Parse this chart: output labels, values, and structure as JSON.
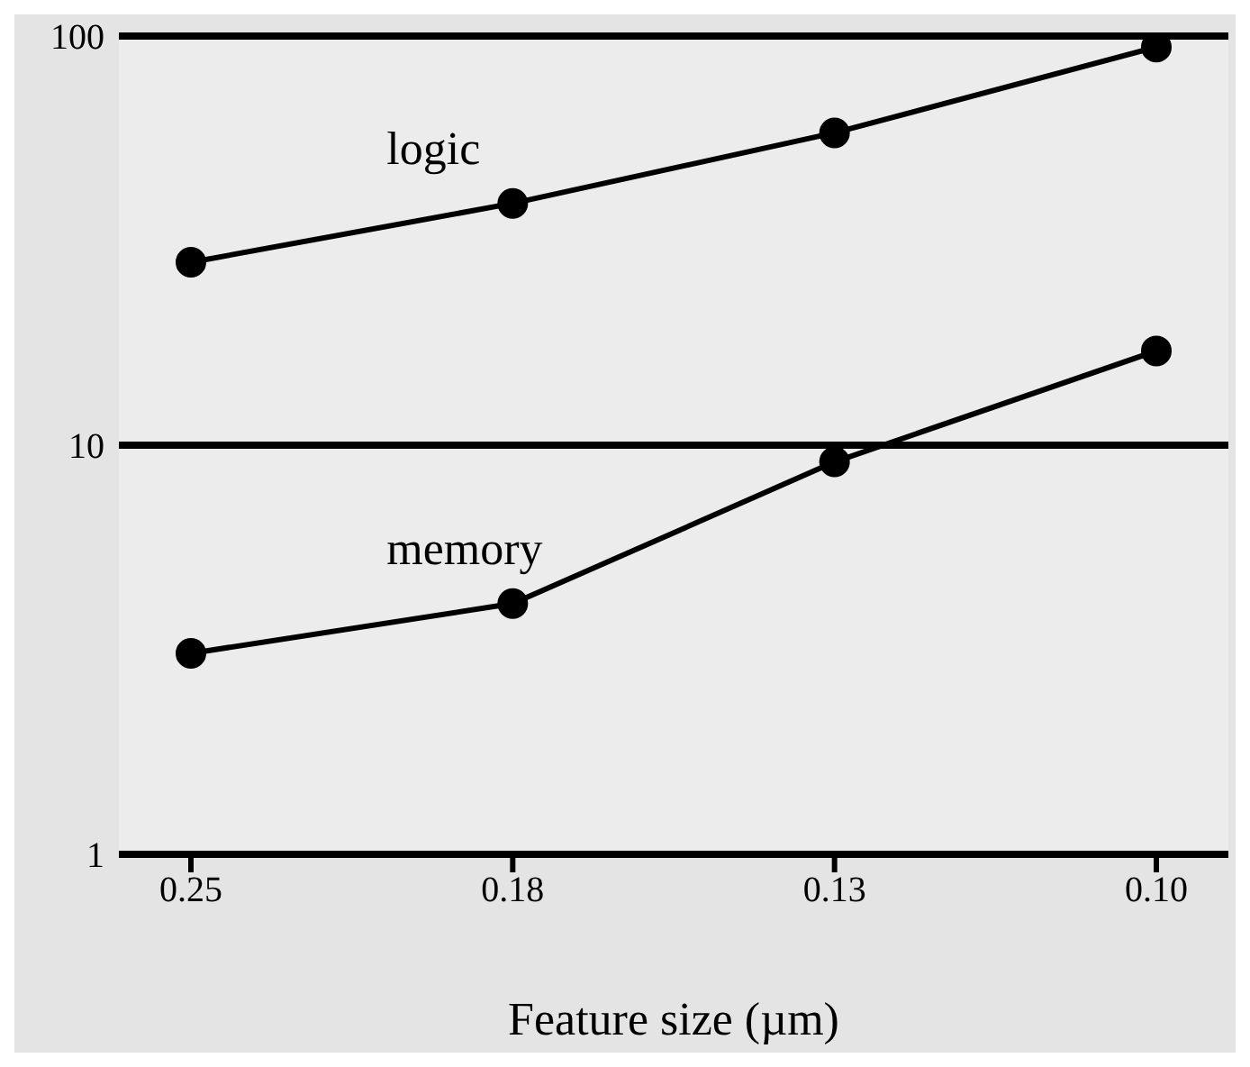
{
  "chart_data": {
    "type": "line",
    "xlabel": "Feature size (µm)",
    "categories": [
      "0.25",
      "0.18",
      "0.13",
      "0.10"
    ],
    "series": [
      {
        "name": "logic",
        "color": "#000000",
        "values": [
          28,
          39,
          58,
          94
        ]
      },
      {
        "name": "memory",
        "color": "#000000",
        "values": [
          3.1,
          4.1,
          9.1,
          17
        ]
      }
    ],
    "log": "y",
    "ylim": [
      1,
      100
    ],
    "yticks": [
      1,
      10,
      100
    ],
    "grid": "y",
    "legend": false,
    "marker": "circle",
    "line_style": "solid"
  }
}
